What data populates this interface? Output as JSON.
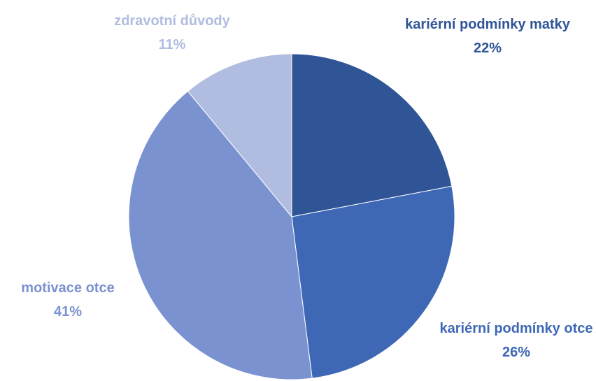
{
  "chart_data": {
    "type": "pie",
    "categories": [
      "kariérní podmínky matky",
      "kariérní podmínky otce",
      "motivace otce",
      "zdravotní důvody"
    ],
    "values": [
      22,
      26,
      41,
      11
    ],
    "value_labels": [
      "22%",
      "26%",
      "41%",
      "11%"
    ],
    "colors": [
      "#2f5597",
      "#3e68b6",
      "#7a92cf",
      "#b0bde0"
    ]
  }
}
